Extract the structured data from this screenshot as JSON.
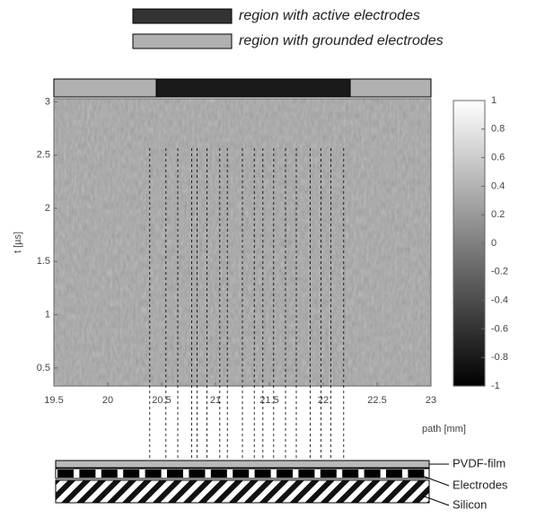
{
  "chart_data": {
    "type": "image",
    "xlabel": "path [mm]",
    "ylabel": "t [µs]",
    "xlim": [
      19.5,
      23
    ],
    "ylim": [
      0.33,
      3.03
    ],
    "xticks": [
      19.5,
      20,
      20.5,
      21,
      21.5,
      22,
      22.5,
      23
    ],
    "yticks": [
      0.5,
      1,
      1.5,
      2,
      2.5,
      3
    ],
    "clim": [
      -1,
      1
    ],
    "cticks": [
      -1,
      -0.8,
      -0.6,
      -0.4,
      -0.2,
      0,
      0.2,
      0.4,
      0.6,
      0.8,
      1
    ],
    "legend": [
      {
        "label": "region with active electrodes",
        "color": "#333333"
      },
      {
        "label": "region with grounded electrodes",
        "color": "#b0b0b0"
      }
    ],
    "active_region": [
      20.45,
      22.25
    ],
    "electrode_edges": [
      20.39,
      20.54,
      20.65,
      20.78,
      20.83,
      20.92,
      21.04,
      21.11,
      21.25,
      21.36,
      21.44,
      21.54,
      21.65,
      21.75,
      21.88,
      21.98,
      22.07,
      22.19
    ],
    "layers": [
      "PVDF-film",
      "Electrodes",
      "Silicon"
    ]
  }
}
